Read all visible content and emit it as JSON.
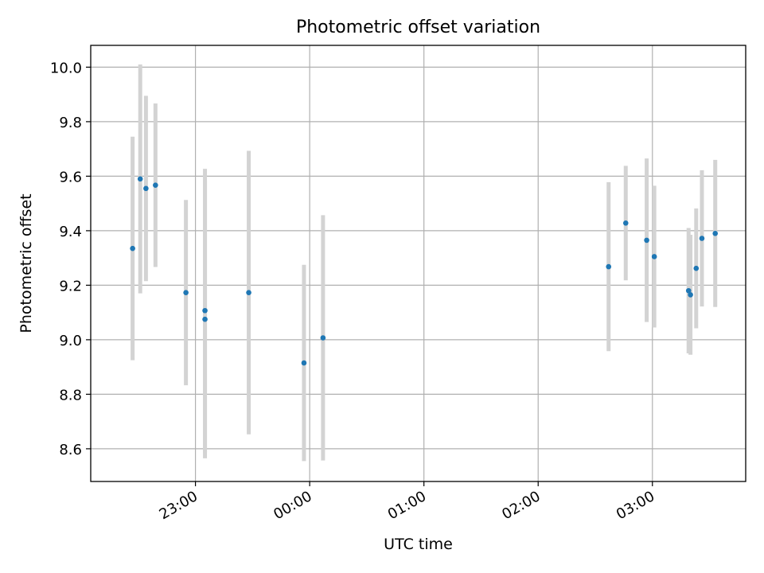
{
  "chart_data": {
    "type": "scatter",
    "title": "Photometric offset variation",
    "xlabel": "UTC time",
    "ylabel": "Photometric offset",
    "x_start": "22:05",
    "x_end": "03:49",
    "x_ticks": [
      "23:00",
      "00:00",
      "01:00",
      "02:00",
      "03:00"
    ],
    "ylim": [
      8.48,
      10.08
    ],
    "y_ticks": [
      8.6,
      8.8,
      9.0,
      9.2,
      9.4,
      9.6,
      9.8,
      10.0
    ],
    "grid": true,
    "colors": {
      "point": "#1f77b4",
      "errorbar": "#d3d3d3",
      "grid": "#b0b0b0"
    },
    "points": [
      {
        "x": "22:27",
        "y": 9.335,
        "yerr": 0.41
      },
      {
        "x": "22:31",
        "y": 9.59,
        "yerr": 0.42
      },
      {
        "x": "22:34",
        "y": 9.555,
        "yerr": 0.34
      },
      {
        "x": "22:39",
        "y": 9.567,
        "yerr": 0.3
      },
      {
        "x": "22:55",
        "y": 9.173,
        "yerr": 0.34
      },
      {
        "x": "23:05",
        "y": 9.107,
        "yerr": 0.52
      },
      {
        "x": "23:05",
        "y": 9.075,
        "yerr": 0.51
      },
      {
        "x": "23:28",
        "y": 9.173,
        "yerr": 0.52
      },
      {
        "x": "23:57",
        "y": 8.915,
        "yerr": 0.36
      },
      {
        "x": "00:07",
        "y": 9.007,
        "yerr": 0.45
      },
      {
        "x": "02:37",
        "y": 9.268,
        "yerr": 0.31
      },
      {
        "x": "02:46",
        "y": 9.428,
        "yerr": 0.21
      },
      {
        "x": "02:57",
        "y": 9.365,
        "yerr": 0.3
      },
      {
        "x": "03:01",
        "y": 9.305,
        "yerr": 0.26
      },
      {
        "x": "03:19",
        "y": 9.18,
        "yerr": 0.23
      },
      {
        "x": "03:20",
        "y": 9.165,
        "yerr": 0.22
      },
      {
        "x": "03:23",
        "y": 9.262,
        "yerr": 0.22
      },
      {
        "x": "03:26",
        "y": 9.372,
        "yerr": 0.25
      },
      {
        "x": "03:33",
        "y": 9.39,
        "yerr": 0.27
      }
    ]
  }
}
